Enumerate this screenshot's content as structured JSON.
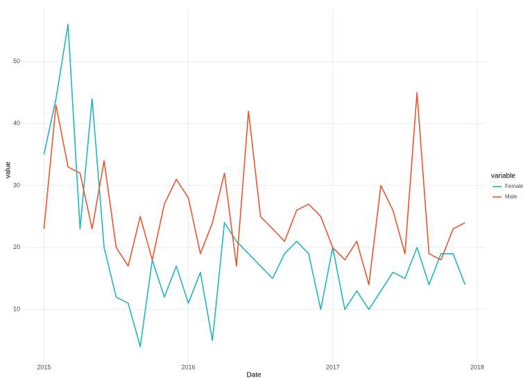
{
  "chart_data": {
    "type": "line",
    "x": [
      "2015-01",
      "2015-02",
      "2015-03",
      "2015-04",
      "2015-05",
      "2015-06",
      "2015-07",
      "2015-08",
      "2015-09",
      "2015-10",
      "2015-11",
      "2015-12",
      "2016-01",
      "2016-02",
      "2016-03",
      "2016-04",
      "2016-05",
      "2016-06",
      "2016-07",
      "2016-08",
      "2016-09",
      "2016-10",
      "2016-11",
      "2016-12",
      "2017-01",
      "2017-02",
      "2017-03",
      "2017-04",
      "2017-05",
      "2017-06",
      "2017-07",
      "2017-08",
      "2017-09",
      "2017-10",
      "2017-11",
      "2017-12"
    ],
    "series": [
      {
        "name": "Female",
        "color": "#1fb5c1",
        "values": [
          35,
          44,
          56,
          23,
          44,
          20,
          12,
          11,
          4,
          18,
          12,
          17,
          11,
          16,
          5,
          24,
          21,
          19,
          17,
          15,
          19,
          21,
          19,
          10,
          20,
          10,
          13,
          10,
          13,
          16,
          15,
          20,
          14,
          19,
          19,
          14
        ]
      },
      {
        "name": "Male",
        "color": "#e8562a",
        "values": [
          23,
          43,
          33,
          32,
          23,
          34,
          20,
          17,
          25,
          18,
          27,
          31,
          28,
          19,
          24,
          32,
          17,
          42,
          25,
          23,
          21,
          26,
          27,
          25,
          20,
          18,
          21,
          14,
          30,
          26,
          19,
          45,
          19,
          18,
          23,
          24
        ]
      }
    ],
    "x_label": "Date",
    "y_label": "value",
    "legend_title": "variable",
    "xlim": [
      2014.854,
      2018.063
    ],
    "xticks": [
      2015,
      2016,
      2017,
      2018
    ],
    "ylim": [
      1.4,
      58.6
    ],
    "yticks": [
      10,
      20,
      30,
      40,
      50
    ],
    "grid": true,
    "legend_position": "right"
  }
}
